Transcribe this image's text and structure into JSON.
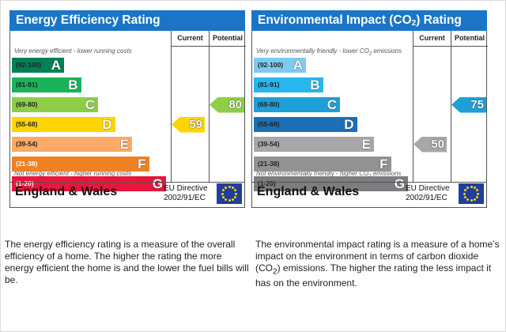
{
  "chart_data": [
    {
      "type": "bar",
      "title": "Energy Efficiency Rating",
      "columns": {
        "current": "Current",
        "potential": "Potential"
      },
      "top_note": "Very energy efficient - lower running costs",
      "bottom_note": "Not energy efficient - higher running costs",
      "bands": [
        {
          "range": "(92-100)",
          "letter": "A",
          "color": "#008054"
        },
        {
          "range": "(81-91)",
          "letter": "B",
          "color": "#19b459"
        },
        {
          "range": "(69-80)",
          "letter": "C",
          "color": "#8dce46"
        },
        {
          "range": "(55-68)",
          "letter": "D",
          "color": "#ffd500"
        },
        {
          "range": "(39-54)",
          "letter": "E",
          "color": "#fcaa65"
        },
        {
          "range": "(21-38)",
          "letter": "F",
          "color": "#ef8023"
        },
        {
          "range": "(1-20)",
          "letter": "G",
          "color": "#e9153b"
        }
      ],
      "current": {
        "value": "59",
        "band": 3,
        "color": "#ffd500"
      },
      "potential": {
        "value": "80",
        "band": 2,
        "color": "#8dce46"
      },
      "region": "England & Wales",
      "directive": [
        "EU Directive",
        "2002/91/EC"
      ]
    },
    {
      "type": "bar",
      "title": "Environmental Impact (CO",
      "title_sub": "2",
      "title_end": ") Rating",
      "columns": {
        "current": "Current",
        "potential": "Potential"
      },
      "top_note": "Very environmentally friendly - lower CO",
      "top_note_sub": "2",
      "top_note_end": " emissions",
      "bottom_note": "Not environmentally friendly - higher CO",
      "bottom_note_sub": "2",
      "bottom_note_end": " emissions",
      "bands": [
        {
          "range": "(92-100)",
          "letter": "A",
          "color": "#7ecbf0"
        },
        {
          "range": "(81-91)",
          "letter": "B",
          "color": "#27b7ec"
        },
        {
          "range": "(69-80)",
          "letter": "C",
          "color": "#1e9fd8"
        },
        {
          "range": "(55-68)",
          "letter": "D",
          "color": "#1c6fb7"
        },
        {
          "range": "(39-54)",
          "letter": "E",
          "color": "#a7a7a9"
        },
        {
          "range": "(21-38)",
          "letter": "F",
          "color": "#929294"
        },
        {
          "range": "(1-20)",
          "letter": "G",
          "color": "#7d7d7f"
        }
      ],
      "current": {
        "value": "50",
        "band": 4,
        "color": "#a7a7a9"
      },
      "potential": {
        "value": "75",
        "band": 2,
        "color": "#1e9fd8"
      },
      "region": "England & Wales",
      "directive": [
        "EU Directive",
        "2002/91/EC"
      ]
    }
  ],
  "descriptions": {
    "energy": "The energy efficiency rating is a measure of the overall efficiency of a home. The higher the rating the more energy efficient the home is and the lower the fuel bills will be.",
    "environment_start": "The environmental impact rating is a measure of a home’s impact on the environment in terms of carbon dioxide (CO",
    "environment_sub": "2",
    "environment_end": ") emissions. The higher the rating the less impact it has on the environment."
  },
  "colors": {
    "header": "#1a75c7",
    "flag": "#1f3f9e",
    "flag_stars": "#ffd200"
  }
}
